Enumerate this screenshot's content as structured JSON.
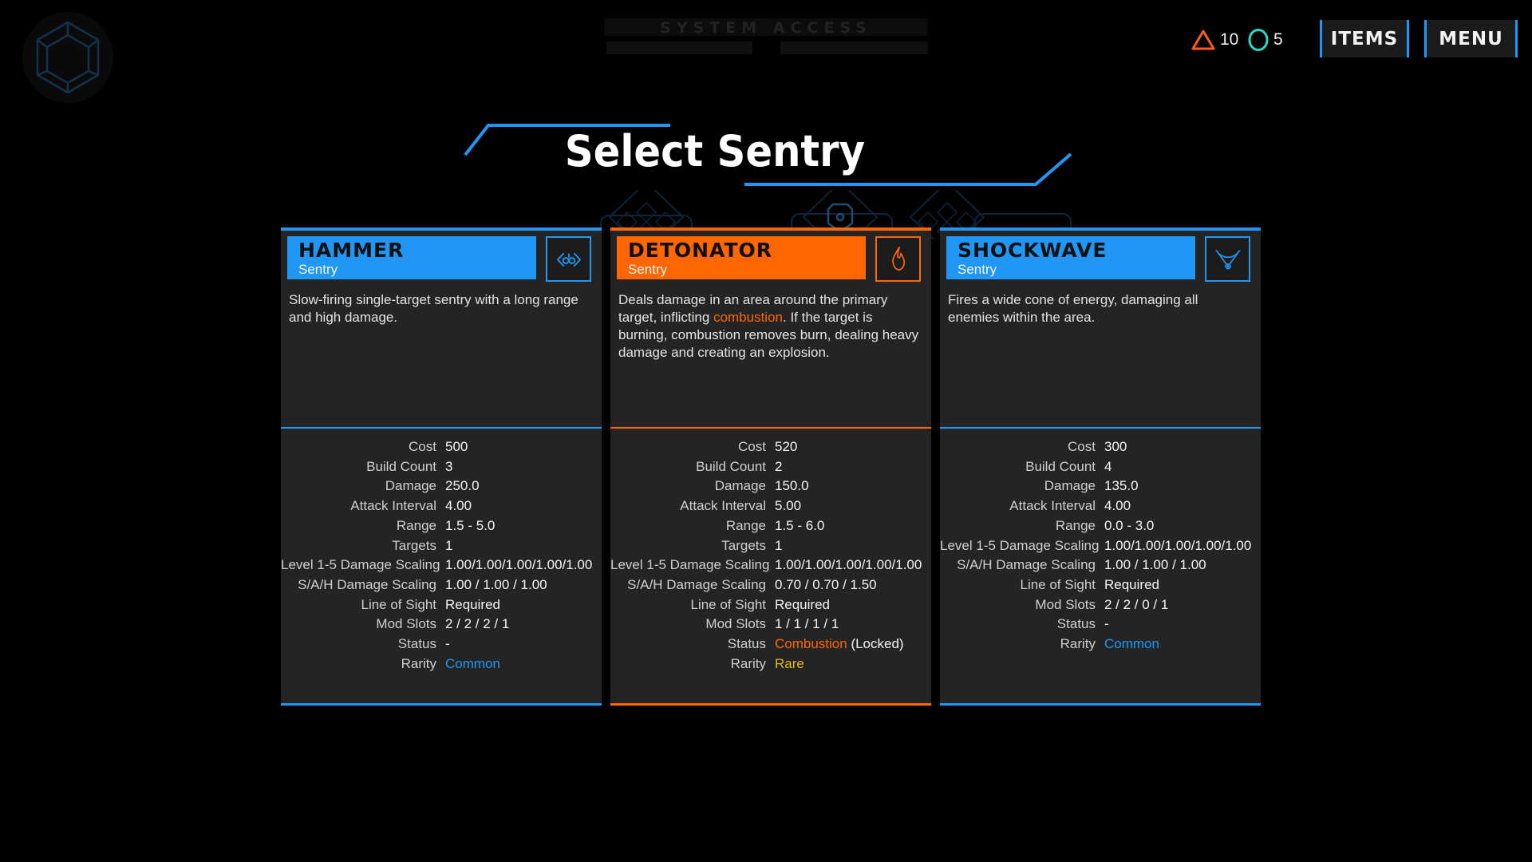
{
  "ghost_header": {
    "title": "SYSTEM ACCESS"
  },
  "topbar": {
    "currencies": [
      {
        "icon": "triangle-currency-icon",
        "value": "10",
        "color": "#ff5a1e"
      },
      {
        "icon": "circle-currency-icon",
        "value": "5",
        "color": "#2bd7c5"
      }
    ],
    "items_label": "ITEMS",
    "menu_label": "MENU"
  },
  "page_title": "Select Sentry",
  "colors": {
    "blue_accent": "#2097f4",
    "orange_accent": "#ff6600",
    "rare_yellow": "#e3bb0e",
    "card_background": "#242424",
    "background": "#000000"
  },
  "cards": [
    {
      "name": "HAMMER",
      "type": "Sentry",
      "accent_color": "#2097f4",
      "icon": "hammer-sentry-icon",
      "description": [
        {
          "text": "Slow-firing single-target sentry with a long range and high damage."
        }
      ],
      "stats": [
        {
          "label": "Cost",
          "parts": [
            {
              "text": "500"
            }
          ]
        },
        {
          "label": "Build Count",
          "parts": [
            {
              "text": "3"
            }
          ]
        },
        {
          "label": "Damage",
          "parts": [
            {
              "text": "250.0"
            }
          ]
        },
        {
          "label": "Attack Interval",
          "parts": [
            {
              "text": "4.00"
            }
          ]
        },
        {
          "label": "Range",
          "parts": [
            {
              "text": "1.5 - 5.0"
            }
          ]
        },
        {
          "label": "Targets",
          "parts": [
            {
              "text": "1"
            }
          ]
        },
        {
          "label": "Level 1-5 Damage Scaling",
          "parts": [
            {
              "text": "1.00/1.00/1.00/1.00/1.00"
            }
          ]
        },
        {
          "label": "S/A/H Damage Scaling",
          "parts": [
            {
              "text": "1.00 / 1.00 / 1.00"
            }
          ]
        },
        {
          "label": "Line of Sight",
          "parts": [
            {
              "text": "Required"
            }
          ]
        },
        {
          "label": "Mod Slots",
          "parts": [
            {
              "text": "2 / 2 / 2 / 1"
            }
          ]
        },
        {
          "label": "Status",
          "parts": [
            {
              "text": "-"
            }
          ]
        },
        {
          "label": "Rarity",
          "parts": [
            {
              "text": "Common",
              "color": "#2097f4"
            }
          ]
        }
      ]
    },
    {
      "name": "DETONATOR",
      "type": "Sentry",
      "accent_color": "#ff6600",
      "icon": "flame-icon",
      "description": [
        {
          "text": "Deals damage in an area around the primary target, inflicting "
        },
        {
          "text": "combustion",
          "color": "#ff6600"
        },
        {
          "text": ". If the target is burning, combustion removes burn, dealing heavy damage and creating an explosion."
        }
      ],
      "stats": [
        {
          "label": "Cost",
          "parts": [
            {
              "text": "520"
            }
          ]
        },
        {
          "label": "Build Count",
          "parts": [
            {
              "text": "2"
            }
          ]
        },
        {
          "label": "Damage",
          "parts": [
            {
              "text": "150.0"
            }
          ]
        },
        {
          "label": "Attack Interval",
          "parts": [
            {
              "text": "5.00"
            }
          ]
        },
        {
          "label": "Range",
          "parts": [
            {
              "text": "1.5 - 6.0"
            }
          ]
        },
        {
          "label": "Targets",
          "parts": [
            {
              "text": "1"
            }
          ]
        },
        {
          "label": "Level 1-5 Damage Scaling",
          "parts": [
            {
              "text": "1.00/1.00/1.00/1.00/1.00"
            }
          ]
        },
        {
          "label": "S/A/H Damage Scaling",
          "parts": [
            {
              "text": "0.70 / 0.70 / 1.50"
            }
          ]
        },
        {
          "label": "Line of Sight",
          "parts": [
            {
              "text": "Required"
            }
          ]
        },
        {
          "label": "Mod Slots",
          "parts": [
            {
              "text": "1 / 1 / 1 / 1"
            }
          ]
        },
        {
          "label": "Status",
          "parts": [
            {
              "text": "Combustion",
              "color": "#ff6600"
            },
            {
              "text": " (Locked)"
            }
          ]
        },
        {
          "label": "Rarity",
          "parts": [
            {
              "text": "Rare",
              "color": "#e3bb0e"
            }
          ]
        }
      ]
    },
    {
      "name": "SHOCKWAVE",
      "type": "Sentry",
      "accent_color": "#2097f4",
      "icon": "cone-icon",
      "description": [
        {
          "text": "Fires a wide cone of energy, damaging all enemies within the area."
        }
      ],
      "stats": [
        {
          "label": "Cost",
          "parts": [
            {
              "text": "300"
            }
          ]
        },
        {
          "label": "Build Count",
          "parts": [
            {
              "text": "4"
            }
          ]
        },
        {
          "label": "Damage",
          "parts": [
            {
              "text": "135.0"
            }
          ]
        },
        {
          "label": "Attack Interval",
          "parts": [
            {
              "text": "4.00"
            }
          ]
        },
        {
          "label": "Range",
          "parts": [
            {
              "text": "0.0 - 3.0"
            }
          ]
        },
        {
          "label": "Level 1-5 Damage Scaling",
          "parts": [
            {
              "text": "1.00/1.00/1.00/1.00/1.00"
            }
          ]
        },
        {
          "label": "S/A/H Damage Scaling",
          "parts": [
            {
              "text": "1.00 / 1.00 / 1.00"
            }
          ]
        },
        {
          "label": "Line of Sight",
          "parts": [
            {
              "text": "Required"
            }
          ]
        },
        {
          "label": "Mod Slots",
          "parts": [
            {
              "text": "2 / 2 / 0 / 1"
            }
          ]
        },
        {
          "label": "Status",
          "parts": [
            {
              "text": "-"
            }
          ]
        },
        {
          "label": "Rarity",
          "parts": [
            {
              "text": "Common",
              "color": "#2097f4"
            }
          ]
        }
      ]
    }
  ]
}
